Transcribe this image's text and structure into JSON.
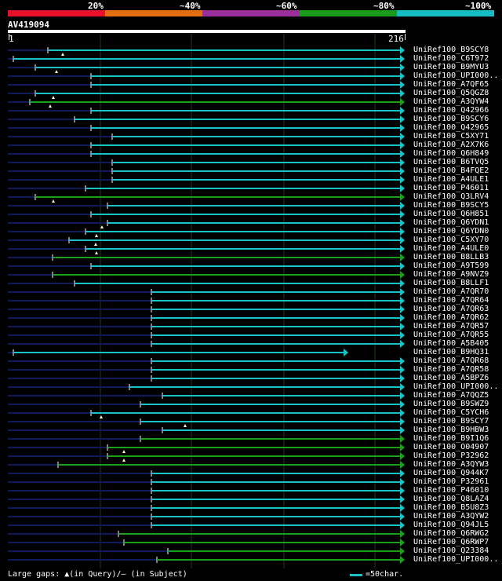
{
  "legend": {
    "labels": [
      "20%",
      "~40%",
      "~60%",
      "~80%",
      "~100%"
    ],
    "colors": [
      "#e8102a",
      "#e36d13",
      "#9a2f9b",
      "#1a9a1a",
      "#16bcc4"
    ]
  },
  "query_id": "AV419094",
  "axis": {
    "start": "1",
    "end": "216"
  },
  "colors": {
    "identity_high": "#16c4c8",
    "identity_mid": "#1aa01a",
    "unaligned": "#101a5a",
    "grid": "#1e3a1e"
  },
  "hits": [
    {
      "label": "UniRef100_B9SCY8",
      "start": 61,
      "end": 515,
      "color": "cyan",
      "gap": 80
    },
    {
      "label": "UniRef100_C6T972",
      "start": 17,
      "end": 515,
      "color": "cyan",
      "gap": null
    },
    {
      "label": "UniRef100_B9MYU3",
      "start": 45,
      "end": 515,
      "color": "cyan",
      "gap": 72
    },
    {
      "label": "UniRef100_UPI000..",
      "start": 116,
      "end": 515,
      "color": "cyan",
      "gap": null
    },
    {
      "label": "UniRef100_A7QF65",
      "start": 116,
      "end": 515,
      "color": "cyan",
      "gap": null
    },
    {
      "label": "UniRef100_Q5QGZ8",
      "start": 45,
      "end": 515,
      "color": "cyan",
      "gap": 68
    },
    {
      "label": "UniRef100_A3QYW4",
      "start": 38,
      "end": 515,
      "color": "green",
      "gap": 64
    },
    {
      "label": "UniRef100_Q42966",
      "start": 116,
      "end": 515,
      "color": "cyan",
      "gap": null
    },
    {
      "label": "UniRef100_B9SCY6",
      "start": 95,
      "end": 515,
      "color": "cyan",
      "gap": null
    },
    {
      "label": "UniRef100_Q42965",
      "start": 116,
      "end": 515,
      "color": "cyan",
      "gap": null
    },
    {
      "label": "UniRef100_C5XY71",
      "start": 143,
      "end": 515,
      "color": "cyan",
      "gap": null
    },
    {
      "label": "UniRef100_A2X7K6",
      "start": 116,
      "end": 515,
      "color": "cyan",
      "gap": null
    },
    {
      "label": "UniRef100_Q6H849",
      "start": 116,
      "end": 515,
      "color": "cyan",
      "gap": null
    },
    {
      "label": "UniRef100_B6TVQ5",
      "start": 143,
      "end": 515,
      "color": "cyan",
      "gap": null
    },
    {
      "label": "UniRef100_B4FQE2",
      "start": 143,
      "end": 515,
      "color": "cyan",
      "gap": null
    },
    {
      "label": "UniRef100_A4ULE1",
      "start": 143,
      "end": 515,
      "color": "cyan",
      "gap": null
    },
    {
      "label": "UniRef100_P46011",
      "start": 109,
      "end": 515,
      "color": "cyan",
      "gap": null
    },
    {
      "label": "UniRef100_Q3LRV4",
      "start": 45,
      "end": 515,
      "color": "green",
      "gap": 68
    },
    {
      "label": "UniRef100_B9SCY5",
      "start": 137,
      "end": 515,
      "color": "cyan",
      "gap": null
    },
    {
      "label": "UniRef100_Q6H851",
      "start": 116,
      "end": 515,
      "color": "cyan",
      "gap": null
    },
    {
      "label": "UniRef100_Q6YDN1",
      "start": 137,
      "end": 515,
      "color": "cyan",
      "gap": 130
    },
    {
      "label": "UniRef100_Q6YDN0",
      "start": 109,
      "end": 515,
      "color": "cyan",
      "gap": 123
    },
    {
      "label": "UniRef100_C5XY70",
      "start": 88,
      "end": 515,
      "color": "cyan",
      "gap": 122
    },
    {
      "label": "UniRef100_A4ULE0",
      "start": 109,
      "end": 515,
      "color": "cyan",
      "gap": 123
    },
    {
      "label": "UniRef100_B8LLB3",
      "start": 67,
      "end": 515,
      "color": "green",
      "gap": null
    },
    {
      "label": "UniRef100_A9T599",
      "start": 116,
      "end": 515,
      "color": "cyan",
      "gap": null
    },
    {
      "label": "UniRef100_A9NVZ9",
      "start": 67,
      "end": 515,
      "color": "green",
      "gap": null
    },
    {
      "label": "UniRef100_B8LLF1",
      "start": 95,
      "end": 515,
      "color": "cyan",
      "gap": null
    },
    {
      "label": "UniRef100_A7QR70",
      "start": 193,
      "end": 515,
      "color": "cyan",
      "gap": null
    },
    {
      "label": "UniRef100_A7QR64",
      "start": 193,
      "end": 515,
      "color": "cyan",
      "gap": null
    },
    {
      "label": "UniRef100_A7QR63",
      "start": 193,
      "end": 515,
      "color": "cyan",
      "gap": null
    },
    {
      "label": "UniRef100_A7QR62",
      "start": 193,
      "end": 515,
      "color": "cyan",
      "gap": null
    },
    {
      "label": "UniRef100_A7QR57",
      "start": 193,
      "end": 515,
      "color": "cyan",
      "gap": null
    },
    {
      "label": "UniRef100_A7QR55",
      "start": 193,
      "end": 515,
      "color": "cyan",
      "gap": null
    },
    {
      "label": "UniRef100_A5B405",
      "start": 193,
      "end": 515,
      "color": "cyan",
      "gap": null
    },
    {
      "label": "UniRef100_B9HQ31",
      "start": 17,
      "end": 443,
      "color": "cyan",
      "gap": null
    },
    {
      "label": "UniRef100_A7QR68",
      "start": 193,
      "end": 515,
      "color": "cyan",
      "gap": null
    },
    {
      "label": "UniRef100_A7QR58",
      "start": 193,
      "end": 515,
      "color": "cyan",
      "gap": null
    },
    {
      "label": "UniRef100_A5BPZ6",
      "start": 193,
      "end": 515,
      "color": "cyan",
      "gap": null
    },
    {
      "label": "UniRef100_UPI000..",
      "start": 165,
      "end": 515,
      "color": "cyan",
      "gap": null
    },
    {
      "label": "UniRef100_A7QQZ5",
      "start": 207,
      "end": 515,
      "color": "cyan",
      "gap": null
    },
    {
      "label": "UniRef100_B9SWZ9",
      "start": 179,
      "end": 515,
      "color": "cyan",
      "gap": null
    },
    {
      "label": "UniRef100_C5YCH6",
      "start": 116,
      "end": 515,
      "color": "cyan",
      "gap": 129
    },
    {
      "label": "UniRef100_B9SCY7",
      "start": 179,
      "end": 515,
      "color": "cyan",
      "gap": 236
    },
    {
      "label": "UniRef100_B9HBW3",
      "start": 207,
      "end": 515,
      "color": "cyan",
      "gap": null
    },
    {
      "label": "UniRef100_B9I1Q6",
      "start": 179,
      "end": 515,
      "color": "green",
      "gap": null
    },
    {
      "label": "UniRef100_O04907",
      "start": 137,
      "end": 515,
      "color": "green",
      "gap": 158
    },
    {
      "label": "UniRef100_P32962",
      "start": 137,
      "end": 515,
      "color": "green",
      "gap": 158
    },
    {
      "label": "UniRef100_A3QYW3",
      "start": 74,
      "end": 515,
      "color": "green",
      "gap": null
    },
    {
      "label": "UniRef100_Q944K7",
      "start": 193,
      "end": 515,
      "color": "cyan",
      "gap": null
    },
    {
      "label": "UniRef100_P32961",
      "start": 193,
      "end": 515,
      "color": "cyan",
      "gap": null
    },
    {
      "label": "UniRef100_P46010",
      "start": 193,
      "end": 515,
      "color": "cyan",
      "gap": null
    },
    {
      "label": "UniRef100_Q8LAZ4",
      "start": 193,
      "end": 515,
      "color": "cyan",
      "gap": null
    },
    {
      "label": "UniRef100_B5U8Z3",
      "start": 193,
      "end": 515,
      "color": "cyan",
      "gap": null
    },
    {
      "label": "UniRef100_A3QYW2",
      "start": 193,
      "end": 515,
      "color": "cyan",
      "gap": null
    },
    {
      "label": "UniRef100_Q94JL5",
      "start": 193,
      "end": 515,
      "color": "cyan",
      "gap": null
    },
    {
      "label": "UniRef100_Q6RWG2",
      "start": 151,
      "end": 515,
      "color": "green",
      "gap": null
    },
    {
      "label": "UniRef100_Q6RWP7",
      "start": 158,
      "end": 515,
      "color": "green",
      "gap": null
    },
    {
      "label": "UniRef100_Q23384",
      "start": 214,
      "end": 515,
      "color": "green",
      "gap": null
    },
    {
      "label": "UniRef100_UPI000..",
      "start": 200,
      "end": 515,
      "color": "green",
      "gap": null
    }
  ],
  "footer": {
    "large_gaps": "Large gaps: ▲(in Query)/– (in Subject)",
    "scale": "=50char."
  }
}
